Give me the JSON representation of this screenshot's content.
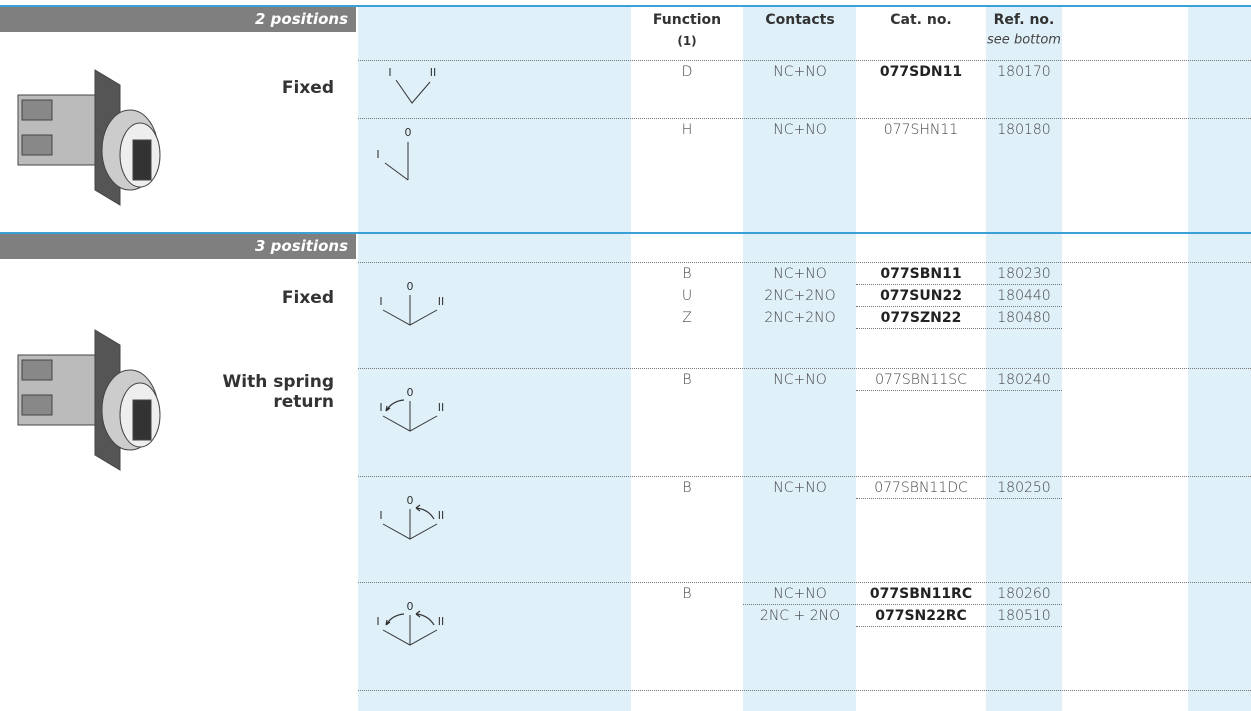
{
  "header": {
    "function": "Function",
    "function_note": "(1)",
    "contacts": "Contacts",
    "cat_no": "Cat. no.",
    "ref_no": "Ref. no.",
    "ref_note": "see bottom"
  },
  "sections": [
    {
      "title": "2 positions",
      "labels": [
        "Fixed"
      ],
      "groups": [
        {
          "diagram": [
            "I",
            "II"
          ],
          "rows": [
            {
              "function": "D",
              "contacts": "NC+NO",
              "cat_no": "077SDN11",
              "ref_no": "180170",
              "bold": true
            }
          ]
        },
        {
          "diagram": [
            "0",
            "I"
          ],
          "rows": [
            {
              "function": "H",
              "contacts": "NC+NO",
              "cat_no": "077SHN11",
              "ref_no": "180180",
              "bold": false
            }
          ]
        }
      ]
    },
    {
      "title": "3 positions",
      "labels": [
        "Fixed",
        "With spring return"
      ],
      "groups": [
        {
          "diagram": [
            "0",
            "I",
            "II"
          ],
          "rows": [
            {
              "function": "B",
              "contacts": "NC+NO",
              "cat_no": "077SBN11",
              "ref_no": "180230",
              "bold": true
            },
            {
              "function": "U",
              "contacts": "2NC+2NO",
              "cat_no": "077SUN22",
              "ref_no": "180440",
              "bold": true
            },
            {
              "function": "Z",
              "contacts": "2NC+2NO",
              "cat_no": "077SZN22",
              "ref_no": "180480",
              "bold": true
            }
          ]
        },
        {
          "diagram": [
            "0",
            "I",
            "II"
          ],
          "rows": [
            {
              "function": "B",
              "contacts": "NC+NO",
              "cat_no": "077SBN11SC",
              "ref_no": "180240",
              "bold": false
            }
          ]
        },
        {
          "diagram": [
            "0",
            "I",
            "II"
          ],
          "rows": [
            {
              "function": "B",
              "contacts": "NC+NO",
              "cat_no": "077SBN11DC",
              "ref_no": "180250",
              "bold": false
            }
          ]
        },
        {
          "diagram": [
            "0",
            "I",
            "II"
          ],
          "rows": [
            {
              "function": "B",
              "contacts": "NC+NO",
              "cat_no": "077SBN11RC",
              "ref_no": "180260",
              "bold": true
            },
            {
              "function": null,
              "contacts": "2NC + 2NO",
              "cat_no": "077SN22RC",
              "ref_no": "180510",
              "bold": true
            }
          ]
        }
      ]
    }
  ]
}
